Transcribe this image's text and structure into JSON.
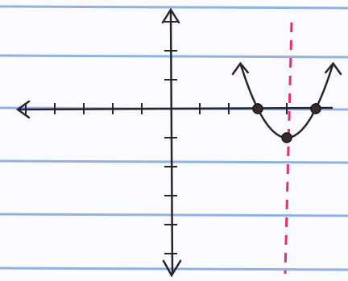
{
  "points": [
    {
      "x": 3,
      "y": 0
    },
    {
      "x": 4,
      "y": -1
    },
    {
      "x": 5,
      "y": 0
    }
  ],
  "axis_of_symmetry": 4
}
